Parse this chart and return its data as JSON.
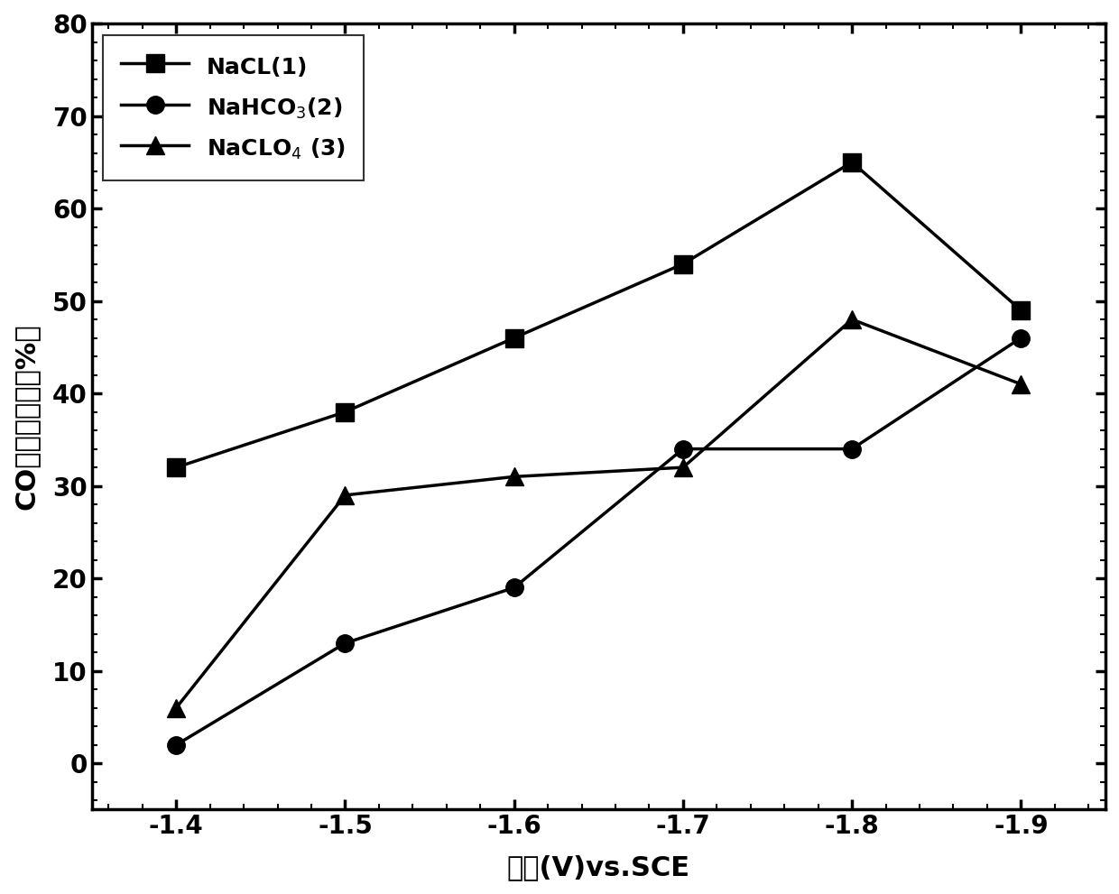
{
  "x": [
    -1.4,
    -1.5,
    -1.6,
    -1.7,
    -1.8,
    -1.9
  ],
  "nacl": [
    32,
    38,
    46,
    54,
    65,
    49
  ],
  "nahco3": [
    2,
    13,
    19,
    34,
    34,
    46
  ],
  "naclo4": [
    6,
    29,
    31,
    32,
    48,
    41
  ],
  "xlabel": "电位(V)vs.SCE",
  "ylabel": "CO法拉第效率（%）",
  "legend_nacl": "NaCL(1)",
  "legend_nahco3": "NaHCO$_{3}$(2)",
  "legend_naclo4": "NaCLO$_{4}$ (3)",
  "xlim_left": -1.35,
  "xlim_right": -1.95,
  "ylim": [
    -5,
    80
  ],
  "yticks": [
    0,
    10,
    20,
    30,
    40,
    50,
    60,
    70,
    80
  ],
  "xticks": [
    -1.4,
    -1.5,
    -1.6,
    -1.7,
    -1.8,
    -1.9
  ],
  "line_color": "#000000",
  "marker_size": 14,
  "linewidth": 2.5,
  "label_fontsize": 22,
  "tick_fontsize": 20,
  "legend_fontsize": 18
}
